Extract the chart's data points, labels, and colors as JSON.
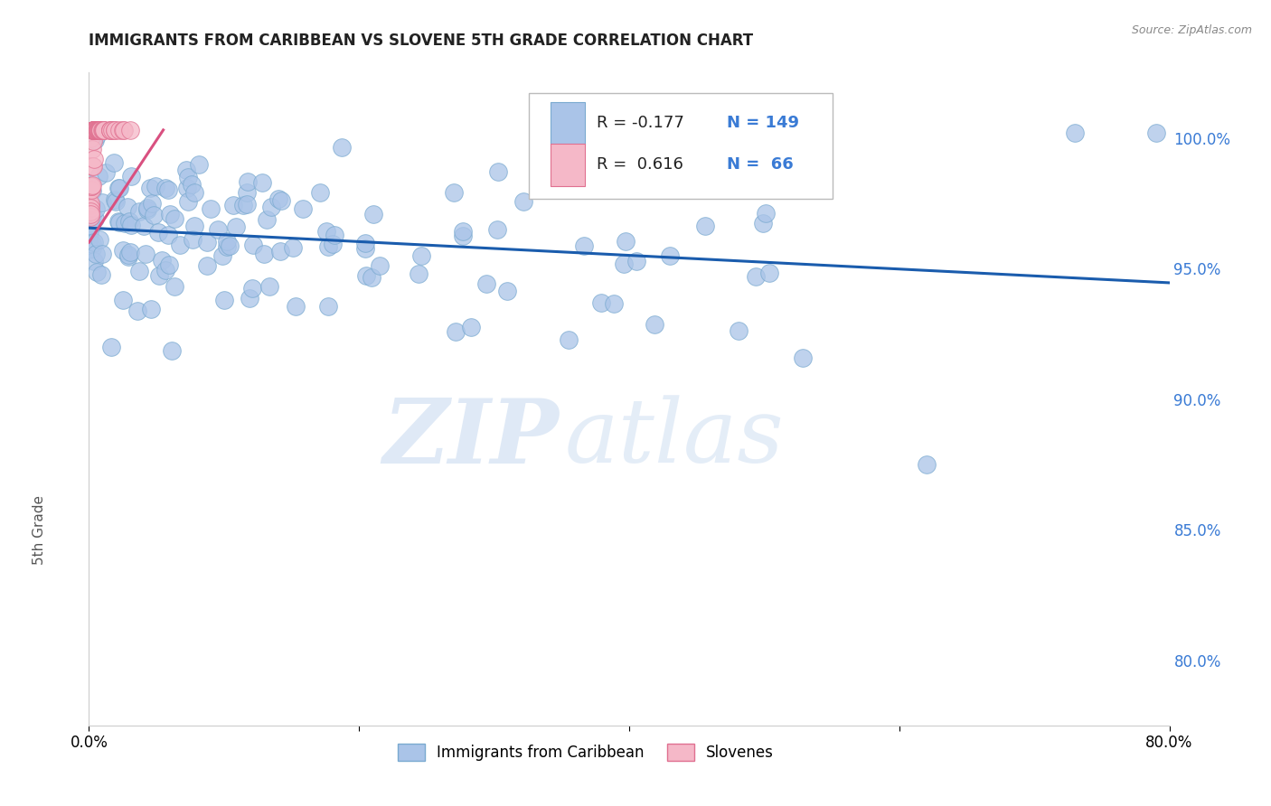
{
  "title": "IMMIGRANTS FROM CARIBBEAN VS SLOVENE 5TH GRADE CORRELATION CHART",
  "source": "Source: ZipAtlas.com",
  "ylabel": "5th Grade",
  "right_ytick_labels": [
    "100.0%",
    "95.0%",
    "90.0%",
    "85.0%",
    "80.0%"
  ],
  "right_ytick_positions": [
    1.0,
    0.95,
    0.9,
    0.85,
    0.8
  ],
  "xlim": [
    0.0,
    0.8
  ],
  "ylim": [
    0.775,
    1.025
  ],
  "legend_blue_label": "Immigrants from Caribbean",
  "legend_pink_label": "Slovenes",
  "blue_line_x": [
    0.0,
    0.8
  ],
  "blue_line_y": [
    0.9655,
    0.9445
  ],
  "pink_line_x": [
    0.0,
    0.055
  ],
  "pink_line_y": [
    0.96,
    1.003
  ],
  "watermark_zip": "ZIP",
  "watermark_atlas": "atlas",
  "grid_color": "#cccccc",
  "blue_dot_color": "#aac4e8",
  "blue_dot_edge": "#7aaad0",
  "pink_dot_color": "#f5b8c8",
  "pink_dot_edge": "#e07090",
  "blue_line_color": "#1a5cad",
  "pink_line_color": "#d95080",
  "title_color": "#222222",
  "source_color": "#888888",
  "right_axis_color": "#3a7bd5",
  "ylabel_color": "#555555"
}
